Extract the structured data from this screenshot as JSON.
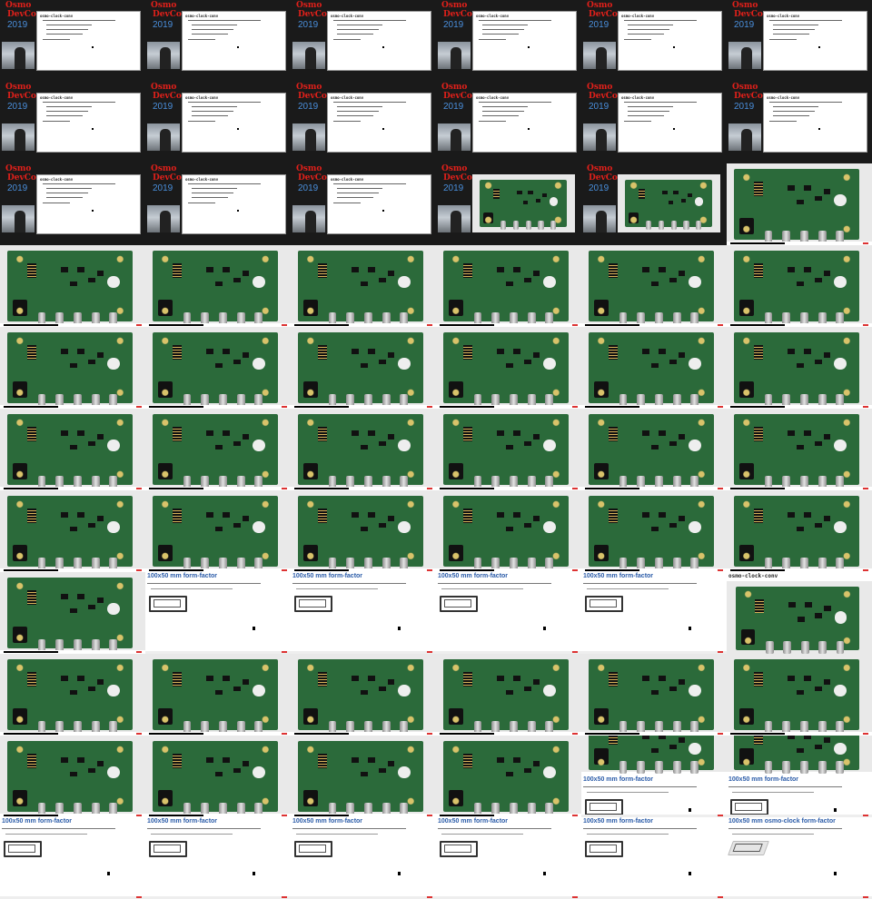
{
  "sheet": {
    "columns": 6,
    "rows": 11,
    "frames": [
      "devcon",
      "devcon",
      "devcon",
      "devcon",
      "devcon",
      "devcon",
      "devcon",
      "devcon",
      "devcon",
      "devcon",
      "devcon",
      "devcon",
      "devcon",
      "devcon",
      "devcon",
      "devcon-board",
      "devcon-board",
      "pcb",
      "pcb",
      "pcb",
      "pcb",
      "pcb",
      "pcb",
      "pcb",
      "pcb",
      "pcb",
      "pcb",
      "pcb",
      "pcb",
      "pcb",
      "pcb",
      "pcb",
      "pcb",
      "pcb",
      "pcb",
      "pcb",
      "pcb",
      "pcb",
      "pcb",
      "pcb",
      "pcb",
      "pcb",
      "pcb",
      "formfactor",
      "formfactor",
      "formfactor",
      "formfactor",
      "osmo-title",
      "pcb",
      "pcb",
      "pcb",
      "pcb",
      "pcb",
      "pcb",
      "pcb",
      "pcb",
      "pcb",
      "pcb",
      "formfactor-low",
      "formfactor-low",
      "formfactor",
      "formfactor",
      "formfactor",
      "formfactor",
      "formfactor",
      "formfactor-osmo"
    ]
  },
  "devcon": {
    "logo_top": "Osmo",
    "logo_mid": "DevCon",
    "logo_year": "2019",
    "slide_title": "osmo-clock-conv"
  },
  "formfactor": {
    "title": "100x50 mm form-factor",
    "title_osmo": "100x50 mm osmo-clock form-factor"
  },
  "osmo_title": "osmo-clock-conv",
  "colors": {
    "devcon_bg": "#1a1a1a",
    "logo_red": "#e0201a",
    "year_blue": "#4a8fdc",
    "pcb_green": "#2b6a3a",
    "ff_title_blue": "#2a5ba8"
  }
}
